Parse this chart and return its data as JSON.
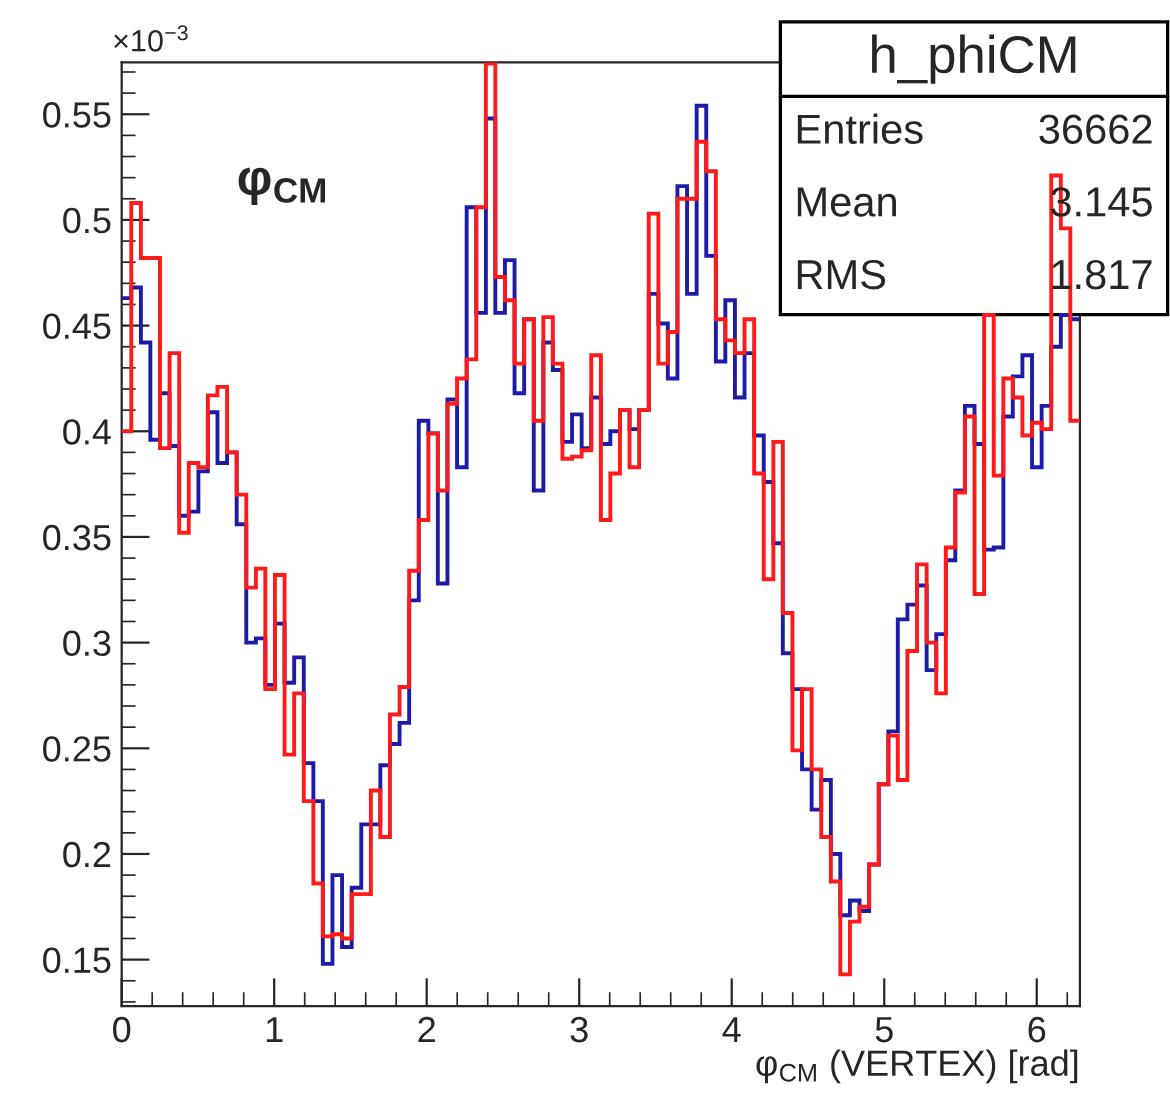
{
  "chart_data": {
    "type": "histogram",
    "xlabel": "φ$_{CM}$ (VERTEX) [rad]",
    "annotations": [
      "φ$_{CM}$",
      "×10$^{−3}$",
      "h_phiCM",
      "Entries",
      "36662",
      "Mean",
      "3.145",
      "RMS",
      "1.817"
    ],
    "bins": [
      0,
      0.063,
      0.126,
      0.188,
      0.251,
      0.314,
      0.377,
      0.44,
      0.503,
      0.565,
      0.628,
      0.691,
      0.754,
      0.817,
      0.88,
      0.942,
      1.005,
      1.068,
      1.131,
      1.194,
      1.257,
      1.319,
      1.382,
      1.445,
      1.508,
      1.571,
      1.634,
      1.696,
      1.759,
      1.822,
      1.885,
      1.948,
      2.011,
      2.073,
      2.136,
      2.199,
      2.262,
      2.325,
      2.388,
      2.45,
      2.513,
      2.576,
      2.639,
      2.702,
      2.765,
      2.827,
      2.89,
      2.953,
      3.016,
      3.079,
      3.142,
      3.204,
      3.267,
      3.33,
      3.393,
      3.456,
      3.519,
      3.581,
      3.644,
      3.707,
      3.77,
      3.833,
      3.896,
      3.958,
      4.021,
      4.084,
      4.147,
      4.21,
      4.273,
      4.335,
      4.398,
      4.461,
      4.524,
      4.587,
      4.65,
      4.712,
      4.775,
      4.838,
      4.901,
      4.964,
      5.027,
      5.089,
      5.152,
      5.215,
      5.278,
      5.341,
      5.404,
      5.466,
      5.529,
      5.592,
      5.655,
      5.718,
      5.781,
      5.843,
      5.906,
      5.969,
      6.032,
      6.095,
      6.158,
      6.22,
      6.283
    ],
    "series": [
      {
        "color": "#1c1ca8",
        "values": [
          0.463,
          0.468,
          0.442,
          0.396,
          0.418,
          0.393,
          0.36,
          0.362,
          0.381,
          0.409,
          0.385,
          0.39,
          0.356,
          0.3,
          0.302,
          0.28,
          0.309,
          0.281,
          0.293,
          0.243,
          0.225,
          0.148,
          0.19,
          0.156,
          0.184,
          0.214,
          0.214,
          0.242,
          0.252,
          0.262,
          0.32,
          0.405,
          0.399,
          0.328,
          0.415,
          0.383,
          0.506,
          0.456,
          0.548,
          0.456,
          0.481,
          0.418,
          0.453,
          0.372,
          0.442,
          0.429,
          0.395,
          0.408,
          0.392,
          0.416,
          0.394,
          0.4,
          0.41,
          0.401,
          0.41,
          0.465,
          0.451,
          0.425,
          0.516,
          0.465,
          0.554,
          0.483,
          0.433,
          0.462,
          0.416,
          0.437,
          0.398,
          0.376,
          0.347,
          0.295,
          0.278,
          0.24,
          0.221,
          0.235,
          0.2,
          0.171,
          0.178,
          0.173,
          0.195,
          0.233,
          0.258,
          0.311,
          0.318,
          0.327,
          0.287,
          0.304,
          0.339,
          0.372,
          0.412,
          0.394,
          0.344,
          0.345,
          0.407,
          0.426,
          0.436,
          0.383,
          0.412,
          0.44,
          0.455,
          0.453
        ]
      },
      {
        "color": "#ff1a1a",
        "values": [
          0.4,
          0.508,
          0.482,
          0.482,
          0.392,
          0.437,
          0.352,
          0.385,
          0.383,
          0.417,
          0.421,
          0.39,
          0.37,
          0.326,
          0.335,
          0.278,
          0.332,
          0.247,
          0.276,
          0.225,
          0.186,
          0.161,
          0.162,
          0.16,
          0.181,
          0.181,
          0.23,
          0.208,
          0.266,
          0.279,
          0.334,
          0.358,
          0.399,
          0.372,
          0.413,
          0.425,
          0.434,
          0.506,
          0.574,
          0.473,
          0.462,
          0.432,
          0.453,
          0.405,
          0.454,
          0.432,
          0.387,
          0.388,
          0.391,
          0.436,
          0.358,
          0.38,
          0.41,
          0.383,
          0.41,
          0.503,
          0.432,
          0.447,
          0.51,
          0.51,
          0.537,
          0.523,
          0.453,
          0.443,
          0.437,
          0.453,
          0.38,
          0.33,
          0.395,
          0.314,
          0.249,
          0.278,
          0.24,
          0.208,
          0.187,
          0.143,
          0.168,
          0.175,
          0.195,
          0.233,
          0.256,
          0.235,
          0.296,
          0.337,
          0.3,
          0.276,
          0.345,
          0.371,
          0.407,
          0.323,
          0.455,
          0.379,
          0.425,
          0.416,
          0.398,
          0.404,
          0.401,
          0.521,
          0.496,
          0.405
        ]
      }
    ],
    "xlim": [
      0,
      6.283
    ],
    "ylim": [
      0.128,
      0.5745
    ],
    "xticks": [
      0,
      1,
      2,
      3,
      4,
      5,
      6
    ],
    "yticks": [
      0.15,
      0.2,
      0.25,
      0.3,
      0.35,
      0.4,
      0.45,
      0.5,
      0.55
    ]
  }
}
